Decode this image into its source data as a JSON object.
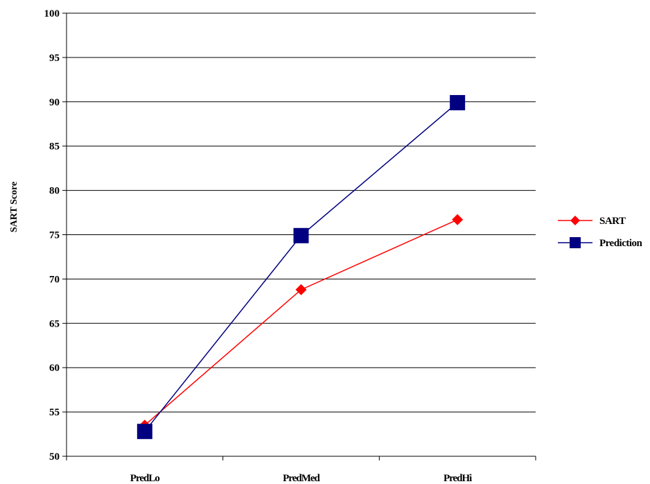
{
  "chart_data": {
    "type": "line",
    "categories": [
      "PredLo",
      "PredMed",
      "PredHi"
    ],
    "series": [
      {
        "name": "SART",
        "values": [
          53.5,
          68.8,
          76.7
        ],
        "color": "#ff0000",
        "marker": "diamond"
      },
      {
        "name": "Prediction",
        "values": [
          52.8,
          74.9,
          89.9
        ],
        "color": "#000080",
        "marker": "square"
      }
    ],
    "ylabel": "SART Score",
    "ylim": [
      50,
      100
    ],
    "yticks": [
      50,
      55,
      60,
      65,
      70,
      75,
      80,
      85,
      90,
      95,
      100
    ],
    "grid": true,
    "legend": "right"
  }
}
